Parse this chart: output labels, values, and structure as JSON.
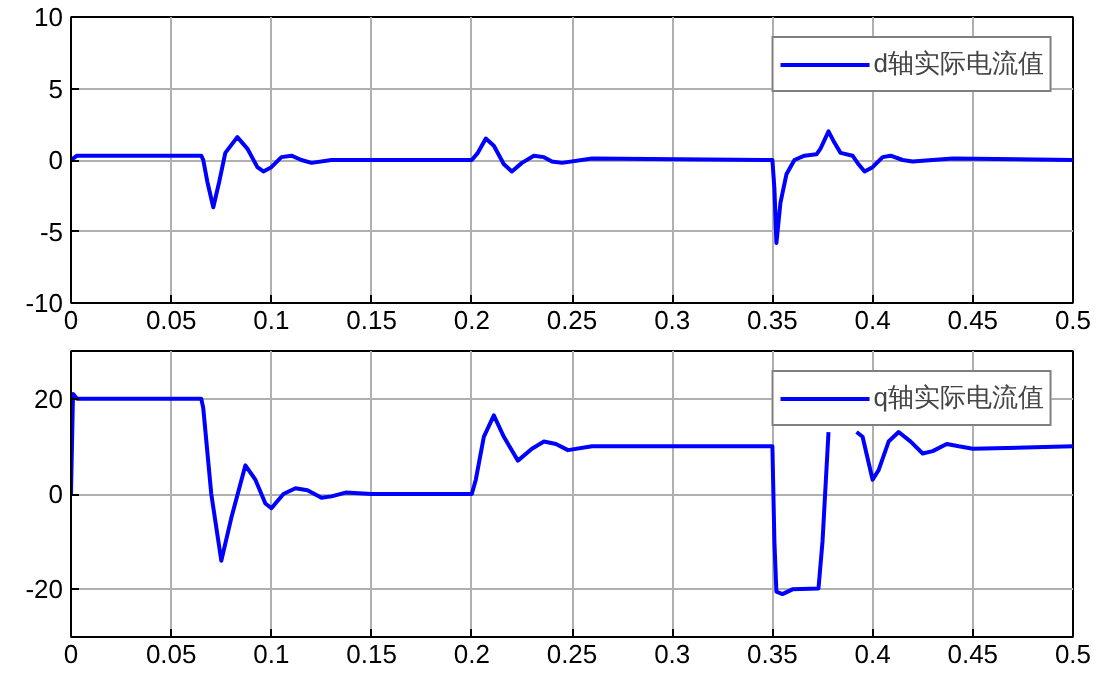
{
  "chart_data": [
    {
      "type": "line",
      "x": [
        0,
        0.003,
        0.065,
        0.066,
        0.068,
        0.071,
        0.074,
        0.077,
        0.083,
        0.088,
        0.093,
        0.096,
        0.1,
        0.105,
        0.11,
        0.115,
        0.12,
        0.13,
        0.2,
        0.203,
        0.207,
        0.211,
        0.216,
        0.22,
        0.225,
        0.231,
        0.236,
        0.24,
        0.245,
        0.26,
        0.35,
        0.351,
        0.352,
        0.354,
        0.357,
        0.361,
        0.366,
        0.372,
        0.374,
        0.378,
        0.381,
        0.384,
        0.39,
        0.393,
        0.396,
        0.4,
        0.405,
        0.409,
        0.415,
        0.42,
        0.43,
        0.44,
        0.5
      ],
      "series": [
        {
          "name": "d轴实际电流值",
          "color": "#0000ff",
          "values": [
            0,
            0.3,
            0.3,
            0,
            -1.5,
            -3.3,
            -1.5,
            0.5,
            1.6,
            0.8,
            -0.5,
            -0.8,
            -0.5,
            0.2,
            0.3,
            0,
            -0.2,
            0,
            0,
            0.5,
            1.5,
            1,
            -0.3,
            -0.8,
            -0.2,
            0.3,
            0.2,
            -0.1,
            -0.2,
            0.1,
            0,
            -2,
            -5.8,
            -3,
            -1,
            0,
            0.3,
            0.4,
            0.8,
            2,
            1.2,
            0.5,
            0.3,
            -0.3,
            -0.8,
            -0.5,
            0.2,
            0.3,
            0,
            -0.1,
            0,
            0.1,
            0
          ]
        }
      ],
      "xlim": [
        0,
        0.5
      ],
      "xticks": [
        0,
        0.05,
        0.1,
        0.15,
        0.2,
        0.25,
        0.3,
        0.35,
        0.4,
        0.45,
        0.5
      ],
      "ylim": [
        -10,
        10
      ],
      "yticks": [
        -10,
        -5,
        0,
        5,
        10
      ],
      "grid": true,
      "legend": "top right",
      "line_style": "solid",
      "marker": "none"
    },
    {
      "type": "line",
      "x": [
        0,
        0.001,
        0.003,
        0.065,
        0.066,
        0.07,
        0.075,
        0.08,
        0.087,
        0.092,
        0.097,
        0.1,
        0.106,
        0.112,
        0.118,
        0.125,
        0.13,
        0.137,
        0.15,
        0.2,
        0.202,
        0.206,
        0.211,
        0.216,
        0.223,
        0.23,
        0.236,
        0.242,
        0.248,
        0.26,
        0.35,
        0.351,
        0.352,
        0.355,
        0.36,
        0.373,
        0.375,
        0.378,
        0.385,
        0.392,
        0.395,
        0.4,
        0.403,
        0.408,
        0.413,
        0.419,
        0.425,
        0.43,
        0.437,
        0.443,
        0.45,
        0.5
      ],
      "series": [
        {
          "name": "q轴实际电流值",
          "color": "#0000ff",
          "values": [
            0,
            21,
            20,
            20,
            18,
            0,
            -14,
            -5,
            6,
            3,
            -2,
            -3,
            0,
            1.2,
            0.8,
            -0.8,
            -0.5,
            0.3,
            0,
            0,
            3,
            12,
            16.5,
            12,
            7,
            9.5,
            11,
            10.5,
            9.2,
            10,
            10,
            -10,
            -20.5,
            -21,
            -20,
            -19.8,
            -10,
            13,
            null,
            13,
            12,
            3,
            5,
            11,
            13,
            11,
            8.5,
            9,
            10.5,
            10,
            9.5,
            10
          ]
        }
      ],
      "xlim": [
        0,
        0.5
      ],
      "xticks": [
        0,
        0.05,
        0.1,
        0.15,
        0.2,
        0.25,
        0.3,
        0.35,
        0.4,
        0.45,
        0.5
      ],
      "ylim": [
        -30,
        30
      ],
      "yticks": [
        -20,
        0,
        20
      ],
      "grid": true,
      "legend": "top right",
      "line_style": "solid",
      "marker": "none"
    }
  ]
}
